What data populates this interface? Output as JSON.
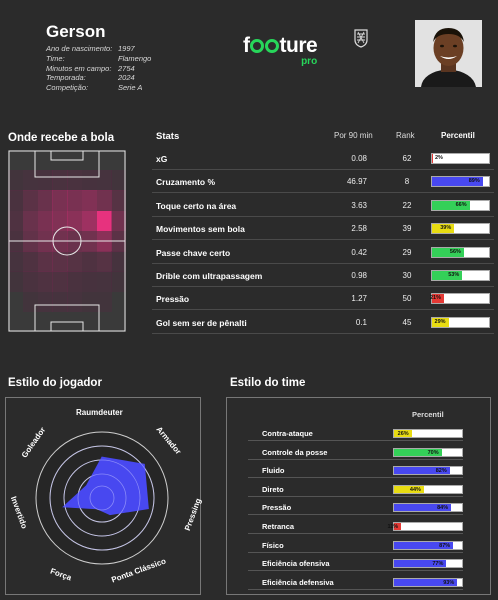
{
  "player": {
    "name": "Gerson",
    "info": [
      {
        "label": "Ano de nascimento:",
        "value": "1997"
      },
      {
        "label": "Time:",
        "value": "Flamengo"
      },
      {
        "label": "Minutos em campo:",
        "value": "2754"
      },
      {
        "label": "Temporada:",
        "value": "2024"
      },
      {
        "label": "Competição:",
        "value": "Serie A"
      }
    ]
  },
  "brand": {
    "logo_start": "f",
    "logo_end": "ture",
    "pro": "pro",
    "accent": "#27d65a"
  },
  "heatmap": {
    "title": "Onde recebe a bola",
    "cols": 8,
    "rows": 9,
    "intensity": [
      [
        0,
        0,
        0,
        0,
        0,
        0,
        0,
        0
      ],
      [
        0.05,
        0.1,
        0.12,
        0.15,
        0.15,
        0.12,
        0.1,
        0.05
      ],
      [
        0.15,
        0.3,
        0.4,
        0.5,
        0.5,
        0.55,
        0.45,
        0.25
      ],
      [
        0.2,
        0.4,
        0.5,
        0.55,
        0.6,
        0.7,
        1.0,
        0.45
      ],
      [
        0.15,
        0.35,
        0.45,
        0.45,
        0.4,
        0.45,
        0.6,
        0.3
      ],
      [
        0.1,
        0.2,
        0.3,
        0.3,
        0.25,
        0.2,
        0.25,
        0.1
      ],
      [
        0.05,
        0.15,
        0.2,
        0.2,
        0.15,
        0.12,
        0.1,
        0.05
      ],
      [
        0,
        0.05,
        0.1,
        0.1,
        0.1,
        0.05,
        0.05,
        0
      ],
      [
        0,
        0,
        0,
        0,
        0,
        0,
        0,
        0
      ]
    ]
  },
  "stats": {
    "headers": {
      "name": "Stats",
      "per90": "Por 90 min",
      "rank": "Rank",
      "percentile": "Percentil"
    },
    "rows": [
      {
        "name": "xG",
        "per90": "0.08",
        "rank": "62",
        "pct": 2,
        "pct_label": "2%",
        "color": "#e53935"
      },
      {
        "name": "Cruzamento %",
        "per90": "46.97",
        "rank": "8",
        "pct": 89,
        "pct_label": "89%",
        "color": "#4848f0"
      },
      {
        "name": "Toque certo na área",
        "per90": "3.63",
        "rank": "22",
        "pct": 66,
        "pct_label": "66%",
        "color": "#34d058"
      },
      {
        "name": "Movimentos sem bola",
        "per90": "2.58",
        "rank": "39",
        "pct": 39,
        "pct_label": "39%",
        "color": "#e8dc12"
      },
      {
        "name": "Passe chave certo",
        "per90": "0.42",
        "pct": 56,
        "rank": "29",
        "pct_label": "56%",
        "color": "#34d058"
      },
      {
        "name": "Drible com ultrapassagem",
        "per90": "0.98",
        "rank": "30",
        "pct": 53,
        "pct_label": "53%",
        "color": "#34d058"
      },
      {
        "name": "Pressão",
        "per90": "1.27",
        "rank": "50",
        "pct": 21,
        "pct_label": "21%",
        "color": "#e53935"
      },
      {
        "name": "Gol sem ser de pênalti",
        "per90": "0.1",
        "rank": "45",
        "pct": 29,
        "pct_label": "29%",
        "color": "#e8dc12"
      }
    ]
  },
  "player_style": {
    "title": "Estilo do jogador",
    "axes": [
      {
        "label": "Raumdeuter",
        "value": 0.62
      },
      {
        "label": "Armador",
        "value": 0.82
      },
      {
        "label": "Pressing",
        "value": 0.72
      },
      {
        "label": "Ponta Clássico",
        "value": 0.28
      },
      {
        "label": "Força",
        "value": 0.18
      },
      {
        "label": "Invertido",
        "value": 0.6
      },
      {
        "label": "Goleador",
        "value": 0.3
      }
    ],
    "color": "#4848f0"
  },
  "team_style": {
    "title": "Estilo do time",
    "header": "Percentil",
    "rows": [
      {
        "name": "Contra-ataque",
        "pct": 26,
        "pct_label": "26%",
        "color": "#e8dc12"
      },
      {
        "name": "Controle da posse",
        "pct": 70,
        "pct_label": "70%",
        "color": "#34d058"
      },
      {
        "name": "Fluido",
        "pct": 82,
        "pct_label": "82%",
        "color": "#4848f0"
      },
      {
        "name": "Direto",
        "pct": 44,
        "pct_label": "44%",
        "color": "#e8dc12"
      },
      {
        "name": "Pressão",
        "pct": 84,
        "pct_label": "84%",
        "color": "#4848f0"
      },
      {
        "name": "Retranca",
        "pct": 11,
        "pct_label": "11%",
        "color": "#e53935"
      },
      {
        "name": "Físico",
        "pct": 87,
        "pct_label": "87%",
        "color": "#4848f0"
      },
      {
        "name": "Eficiência ofensiva",
        "pct": 77,
        "pct_label": "77%",
        "color": "#4848f0"
      },
      {
        "name": "Eficiência defensiva",
        "pct": 93,
        "pct_label": "93%",
        "color": "#4848f0"
      }
    ]
  }
}
